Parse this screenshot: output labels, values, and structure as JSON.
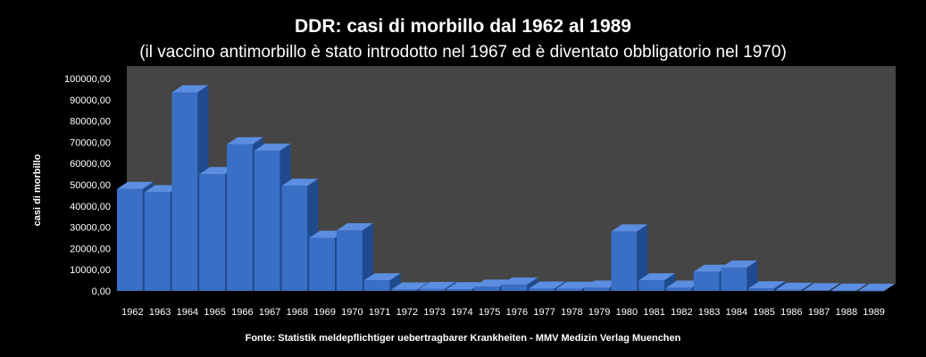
{
  "chart_data": {
    "type": "bar",
    "title": "DDR: casi di morbillo dal 1962 al 1989",
    "subtitle": "(il vaccino antimorbillo è stato introdotto nel 1967 ed è diventato obbligatorio nel 1970)",
    "ylabel": "casi di morbillo",
    "xlabel": "",
    "source": "Fonte: Statistik meldepflichtiger  uebertragbarer Krankheiten - MMV  Medizin  Verlag Muenchen",
    "ylim": [
      0,
      100000
    ],
    "ytick_step": 10000,
    "ytick_labels": [
      "0,00",
      "10000,00",
      "20000,00",
      "30000,00",
      "40000,00",
      "50000,00",
      "60000,00",
      "70000,00",
      "80000,00",
      "90000,00",
      "100000,00"
    ],
    "grid": false,
    "legend": "none",
    "categories": [
      "1962",
      "1963",
      "1964",
      "1965",
      "1966",
      "1967",
      "1968",
      "1969",
      "1970",
      "1971",
      "1972",
      "1973",
      "1974",
      "1975",
      "1976",
      "1977",
      "1978",
      "1979",
      "1980",
      "1981",
      "1982",
      "1983",
      "1984",
      "1985",
      "1986",
      "1987",
      "1988",
      "1989"
    ],
    "values": [
      48000,
      46500,
      93500,
      55000,
      69000,
      66000,
      49500,
      25000,
      28500,
      5000,
      700,
      900,
      800,
      2000,
      3000,
      1100,
      1000,
      1500,
      28000,
      5000,
      1500,
      9000,
      11000,
      1200,
      500,
      300,
      100,
      60
    ],
    "colors": {
      "bar_front": "#3a6fc6",
      "bar_top": "#5b8de0",
      "bar_side": "#1f4a8e",
      "plot_back": "#454545",
      "plot_floor": "#2b2b2b",
      "background": "#000000",
      "text": "#ffffff"
    }
  }
}
